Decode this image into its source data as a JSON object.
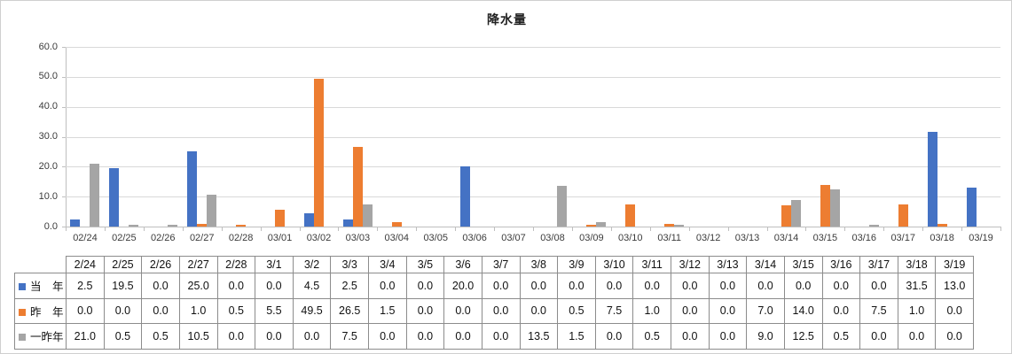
{
  "chart_data": {
    "type": "bar",
    "title": "降水量",
    "xlabel": "",
    "ylabel": "",
    "ylim": [
      0,
      60
    ],
    "y_ticks": [
      "0.0",
      "10.0",
      "20.0",
      "30.0",
      "40.0",
      "50.0",
      "60.0"
    ],
    "grid": true,
    "legend_position": "table-left",
    "categories": [
      "02/24",
      "02/25",
      "02/26",
      "02/27",
      "02/28",
      "03/01",
      "03/02",
      "03/03",
      "03/04",
      "03/05",
      "03/06",
      "03/07",
      "03/08",
      "03/09",
      "03/10",
      "03/11",
      "03/12",
      "03/13",
      "03/14",
      "03/15",
      "03/16",
      "03/17",
      "03/18",
      "03/19"
    ],
    "table_categories": [
      "2/24",
      "2/25",
      "2/26",
      "2/27",
      "2/28",
      "3/1",
      "3/2",
      "3/3",
      "3/4",
      "3/5",
      "3/6",
      "3/7",
      "3/8",
      "3/9",
      "3/10",
      "3/11",
      "3/12",
      "3/13",
      "3/14",
      "3/15",
      "3/16",
      "3/17",
      "3/18",
      "3/19"
    ],
    "series": [
      {
        "name": "当　年",
        "color": "#4472C4",
        "values": [
          2.5,
          19.5,
          0.0,
          25.0,
          0.0,
          0.0,
          4.5,
          2.5,
          0.0,
          0.0,
          20.0,
          0.0,
          0.0,
          0.0,
          0.0,
          0.0,
          0.0,
          0.0,
          0.0,
          0.0,
          0.0,
          0.0,
          31.5,
          13.0
        ]
      },
      {
        "name": "昨　年",
        "color": "#ED7D31",
        "values": [
          0.0,
          0.0,
          0.0,
          1.0,
          0.5,
          5.5,
          49.5,
          26.5,
          1.5,
          0.0,
          0.0,
          0.0,
          0.0,
          0.5,
          7.5,
          1.0,
          0.0,
          0.0,
          7.0,
          14.0,
          0.0,
          7.5,
          1.0,
          0.0
        ]
      },
      {
        "name": "一昨年",
        "color": "#A5A5A5",
        "values": [
          21.0,
          0.5,
          0.5,
          10.5,
          0.0,
          0.0,
          0.0,
          7.5,
          0.0,
          0.0,
          0.0,
          0.0,
          13.5,
          1.5,
          0.0,
          0.5,
          0.0,
          0.0,
          9.0,
          12.5,
          0.5,
          0.0,
          0.0,
          0.0
        ]
      }
    ],
    "value_format": "one-decimal"
  }
}
